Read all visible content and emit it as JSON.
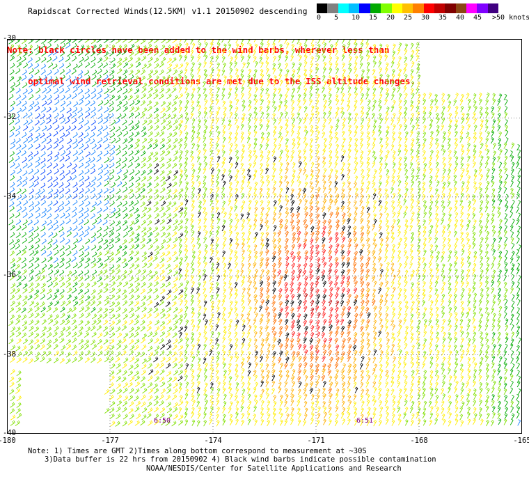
{
  "title": "Rapidscat Corrected Winds(12.5KM) v1.1 20150902 descending",
  "note_lines": [
    "Note: black circles have been added to the wind barbs, wherever less than",
    "    optimal wind retrieval conditions are met due to the ISS altitude changes."
  ],
  "colorbar": {
    "colors": [
      "#000000",
      "#808080",
      "#00ffff",
      "#00bfff",
      "#0000ff",
      "#00aa00",
      "#80ff00",
      "#ffff00",
      "#ffc000",
      "#ff8000",
      "#ff0000",
      "#c00000",
      "#800000",
      "#8b4513",
      "#ff00ff",
      "#8000ff",
      "#400080"
    ],
    "labels": [
      "0",
      "5",
      "10",
      "15",
      "20",
      "25",
      "30",
      "35",
      "40",
      "45",
      ">50 knots"
    ]
  },
  "footer": {
    "line1": "Note: 1) Times are GMT 2)Times along bottom correspond to measurement at ~30S",
    "line2": "3)Data buffer is 22 hrs from 20150902 4) Black wind barbs indicate possible contamination",
    "line3": "NOAA/NESDIS/Center for Satellite Applications and Research"
  },
  "time_labels": [
    "6:50",
    "6:51"
  ],
  "chart_data": {
    "type": "wind-barbs",
    "title": "Rapidscat Corrected Winds(12.5KM) v1.1 20150902 descending",
    "x_range": [
      -180,
      -165
    ],
    "y_range": [
      -40,
      -30
    ],
    "x_ticks": [
      "-180",
      "-177",
      "-174",
      "-171",
      "-168",
      "-165"
    ],
    "y_ticks": [
      "-30",
      "-32",
      "-34",
      "-36",
      "-38",
      "-40"
    ],
    "units": "knots",
    "grid": true,
    "speed_regions": [
      {
        "region": "west (-180 to -176, -30 to -37)",
        "speed_range": [
          10,
          20
        ],
        "color": "blue/cyan"
      },
      {
        "region": "central-east (-175 to -165, -30 to -35)",
        "speed_range": [
          20,
          25
        ],
        "color": "yellow"
      },
      {
        "region": "center (-173 to -169, -33 to -40)",
        "speed_range": [
          25,
          35
        ],
        "color": "orange/red"
      },
      {
        "region": "east edge (-166 to -165)",
        "speed_range": [
          15,
          20
        ],
        "color": "green"
      }
    ]
  }
}
